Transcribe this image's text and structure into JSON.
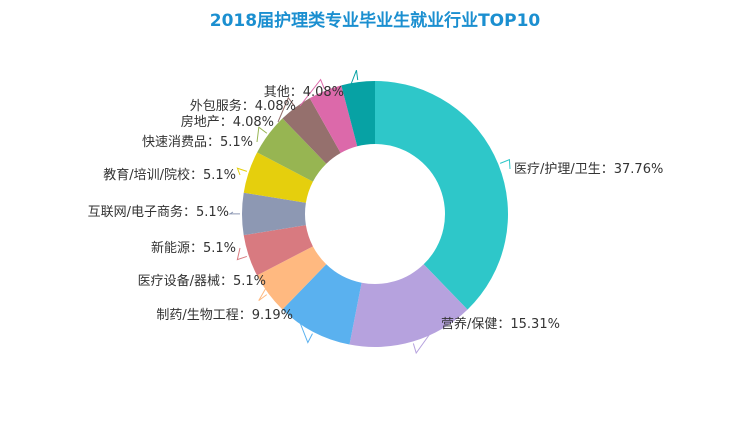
{
  "chart_data": {
    "type": "pie",
    "title": "2018届护理类专业毕业生就业行业TOP10",
    "slices": [
      {
        "name": "医疗/护理/卫生",
        "value": 37.76,
        "label": "医疗/护理/卫生：37.76%",
        "color": "#2ec7c9"
      },
      {
        "name": "营养/保健",
        "value": 15.31,
        "label": "营养/保健：15.31%",
        "color": "#b6a2de"
      },
      {
        "name": "制药/生物工程",
        "value": 9.19,
        "label": "制药/生物工程：9.19%",
        "color": "#5ab1ef"
      },
      {
        "name": "医疗设备/器械",
        "value": 5.1,
        "label": "医疗设备/器械：5.1%",
        "color": "#ffb980"
      },
      {
        "name": "新能源",
        "value": 5.1,
        "label": "新能源：5.1%",
        "color": "#d87a80"
      },
      {
        "name": "互联网/电子商务",
        "value": 5.1,
        "label": "互联网/电子商务：5.1%",
        "color": "#8d98b3"
      },
      {
        "name": "教育/培训/院校",
        "value": 5.1,
        "label": "教育/培训/院校：5.1%",
        "color": "#e5cf0d"
      },
      {
        "name": "快速消费品",
        "value": 5.1,
        "label": "快速消费品：5.1%",
        "color": "#97b552"
      },
      {
        "name": "房地产",
        "value": 4.08,
        "label": "房地产：4.08%",
        "color": "#95706d"
      },
      {
        "name": "外包服务",
        "value": 4.08,
        "label": "外包服务：4.08%",
        "color": "#dc69aa"
      },
      {
        "name": "其他",
        "value": 4.08,
        "label": "其他：4.08%",
        "color": "#07a2a4"
      }
    ],
    "legend": "none",
    "donut": true
  }
}
